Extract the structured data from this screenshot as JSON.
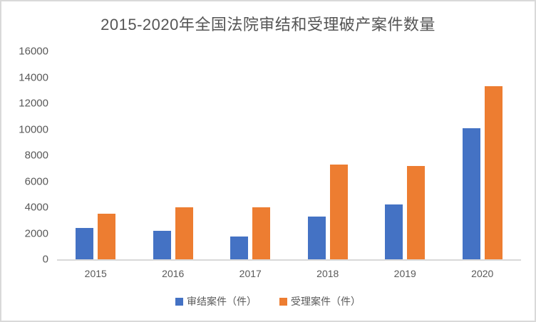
{
  "chart_data": {
    "type": "bar",
    "title": "2015-2020年全国法院审结和受理破产案件数量",
    "categories": [
      "2015",
      "2016",
      "2017",
      "2018",
      "2019",
      "2020"
    ],
    "series": [
      {
        "name": "审结案件（件）",
        "color": "#4472C4",
        "values": [
          2400,
          2200,
          1750,
          3300,
          4200,
          10100
        ]
      },
      {
        "name": "受理案件（件）",
        "color": "#ED7D31",
        "values": [
          3500,
          4000,
          4000,
          7300,
          7200,
          13300
        ]
      }
    ],
    "ylim": [
      0,
      16000
    ],
    "ytick_step": 2000,
    "ytick_labels": [
      "0",
      "2000",
      "4000",
      "6000",
      "8000",
      "10000",
      "12000",
      "14000",
      "16000"
    ],
    "grid": false,
    "legend_position": "bottom",
    "colors": {
      "axis_line": "#D9D9D9",
      "border": "#D9D9D9",
      "text": "#595959"
    }
  }
}
